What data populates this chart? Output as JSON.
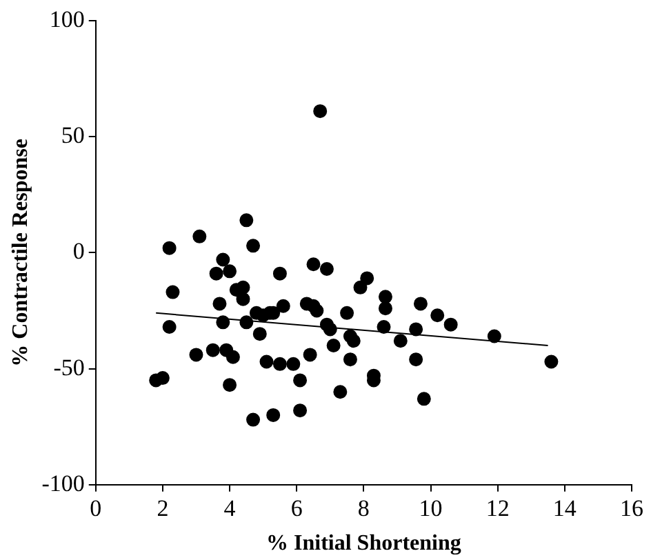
{
  "chart_data": {
    "type": "scatter",
    "xlabel": "% Initial Shortening",
    "ylabel": "% Contractile Response",
    "xlim": [
      0,
      16
    ],
    "xticks": [
      0,
      2,
      4,
      6,
      8,
      10,
      12,
      14,
      16
    ],
    "ylim": [
      -100,
      100
    ],
    "yticks": [
      -100,
      -50,
      0,
      50,
      100
    ],
    "grid": false,
    "legend": false,
    "marker": "circle",
    "series": [
      {
        "color": "#000000",
        "x": [
          1.8,
          2.0,
          2.2,
          2.3,
          2.2,
          3.1,
          3.0,
          3.5,
          3.6,
          3.7,
          3.8,
          3.8,
          3.9,
          4.0,
          4.0,
          4.1,
          4.2,
          4.4,
          4.4,
          4.5,
          4.5,
          4.7,
          4.7,
          4.8,
          4.9,
          5.0,
          5.1,
          5.2,
          5.3,
          5.3,
          5.5,
          5.5,
          5.6,
          5.9,
          6.1,
          6.1,
          6.3,
          6.4,
          6.5,
          6.5,
          6.6,
          6.7,
          6.9,
          6.9,
          7.0,
          7.1,
          7.3,
          7.5,
          7.6,
          7.7,
          7.6,
          7.9,
          8.1,
          8.3,
          8.3,
          8.65,
          8.65,
          8.6,
          9.1,
          9.56,
          9.56,
          9.7,
          9.8,
          10.2,
          10.6,
          11.9,
          13.6
        ],
        "values": [
          -55,
          -54,
          2,
          -17,
          -32,
          7,
          -44,
          -42,
          -9,
          -22,
          -3,
          -30,
          -42,
          -57,
          -8,
          -45,
          -16,
          -15,
          -20,
          14,
          -30,
          -72,
          3,
          -26,
          -35,
          -27,
          -47,
          -26,
          -26,
          -70,
          -9,
          -48,
          -23,
          -48,
          -68,
          -55,
          -22,
          -44,
          -5,
          -23,
          -25,
          61,
          -7,
          -31,
          -33,
          -40,
          -60,
          -26,
          -36,
          -38,
          -46,
          -15,
          -11,
          -53,
          -55,
          -19,
          -24,
          -32,
          -38,
          -33,
          -46,
          -22,
          -63,
          -27,
          -31,
          -36,
          -47
        ]
      },
      {
        "type": "line",
        "color": "#000000",
        "marker": "none",
        "x": [
          1.8,
          13.5
        ],
        "values": [
          -26,
          -40
        ]
      }
    ]
  }
}
